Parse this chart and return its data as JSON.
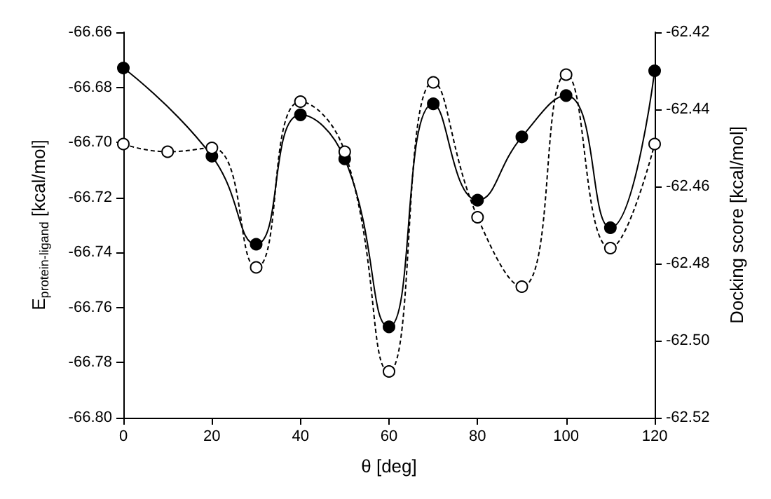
{
  "chart_data": {
    "type": "line",
    "xlabel": "θ [deg]",
    "ylabel": "E$_{protein-ligand}$ [kcal/mol]",
    "y2label": "Docking score [kcal/mol]",
    "series": [
      {
        "color": "#000000",
        "line_style": "solid",
        "marker": "circle",
        "x": [
          0,
          20,
          30,
          40,
          50,
          60,
          70,
          80,
          90,
          100,
          110,
          120
        ],
        "values": [
          -66.673,
          -66.705,
          -66.737,
          -66.69,
          -66.706,
          -66.767,
          -66.686,
          -66.721,
          -66.698,
          -66.683,
          -66.731,
          -66.674
        ]
      },
      {
        "color": "#000000",
        "line_style": "dashed",
        "marker": "circle",
        "axis": "y2",
        "x": [
          0,
          10,
          20,
          30,
          40,
          50,
          60,
          70,
          80,
          90,
          100,
          110,
          120
        ],
        "values": [
          -62.449,
          -62.451,
          -62.45,
          -62.481,
          -62.438,
          -62.451,
          -62.508,
          -62.433,
          -62.468,
          -62.486,
          -62.431,
          -62.476,
          -62.449
        ]
      }
    ],
    "xlim": [
      0,
      120
    ],
    "xticks": [
      0,
      20,
      40,
      60,
      80,
      100,
      120
    ],
    "ylim": [
      -66.8,
      -66.66
    ],
    "yticks": [
      {
        "value": -66.8,
        "label": "-66.80"
      },
      -66.78,
      -66.76,
      -66.74,
      -66.72,
      {
        "value": -66.7,
        "label": "-66.70"
      },
      -66.68,
      -66.66
    ],
    "y2lim": [
      -62.52,
      -62.42
    ],
    "y2ticks": [
      -62.52,
      {
        "value": -62.5,
        "label": "-62.50"
      },
      -62.48,
      -62.46,
      -62.44,
      -62.42
    ],
    "grid": false
  }
}
